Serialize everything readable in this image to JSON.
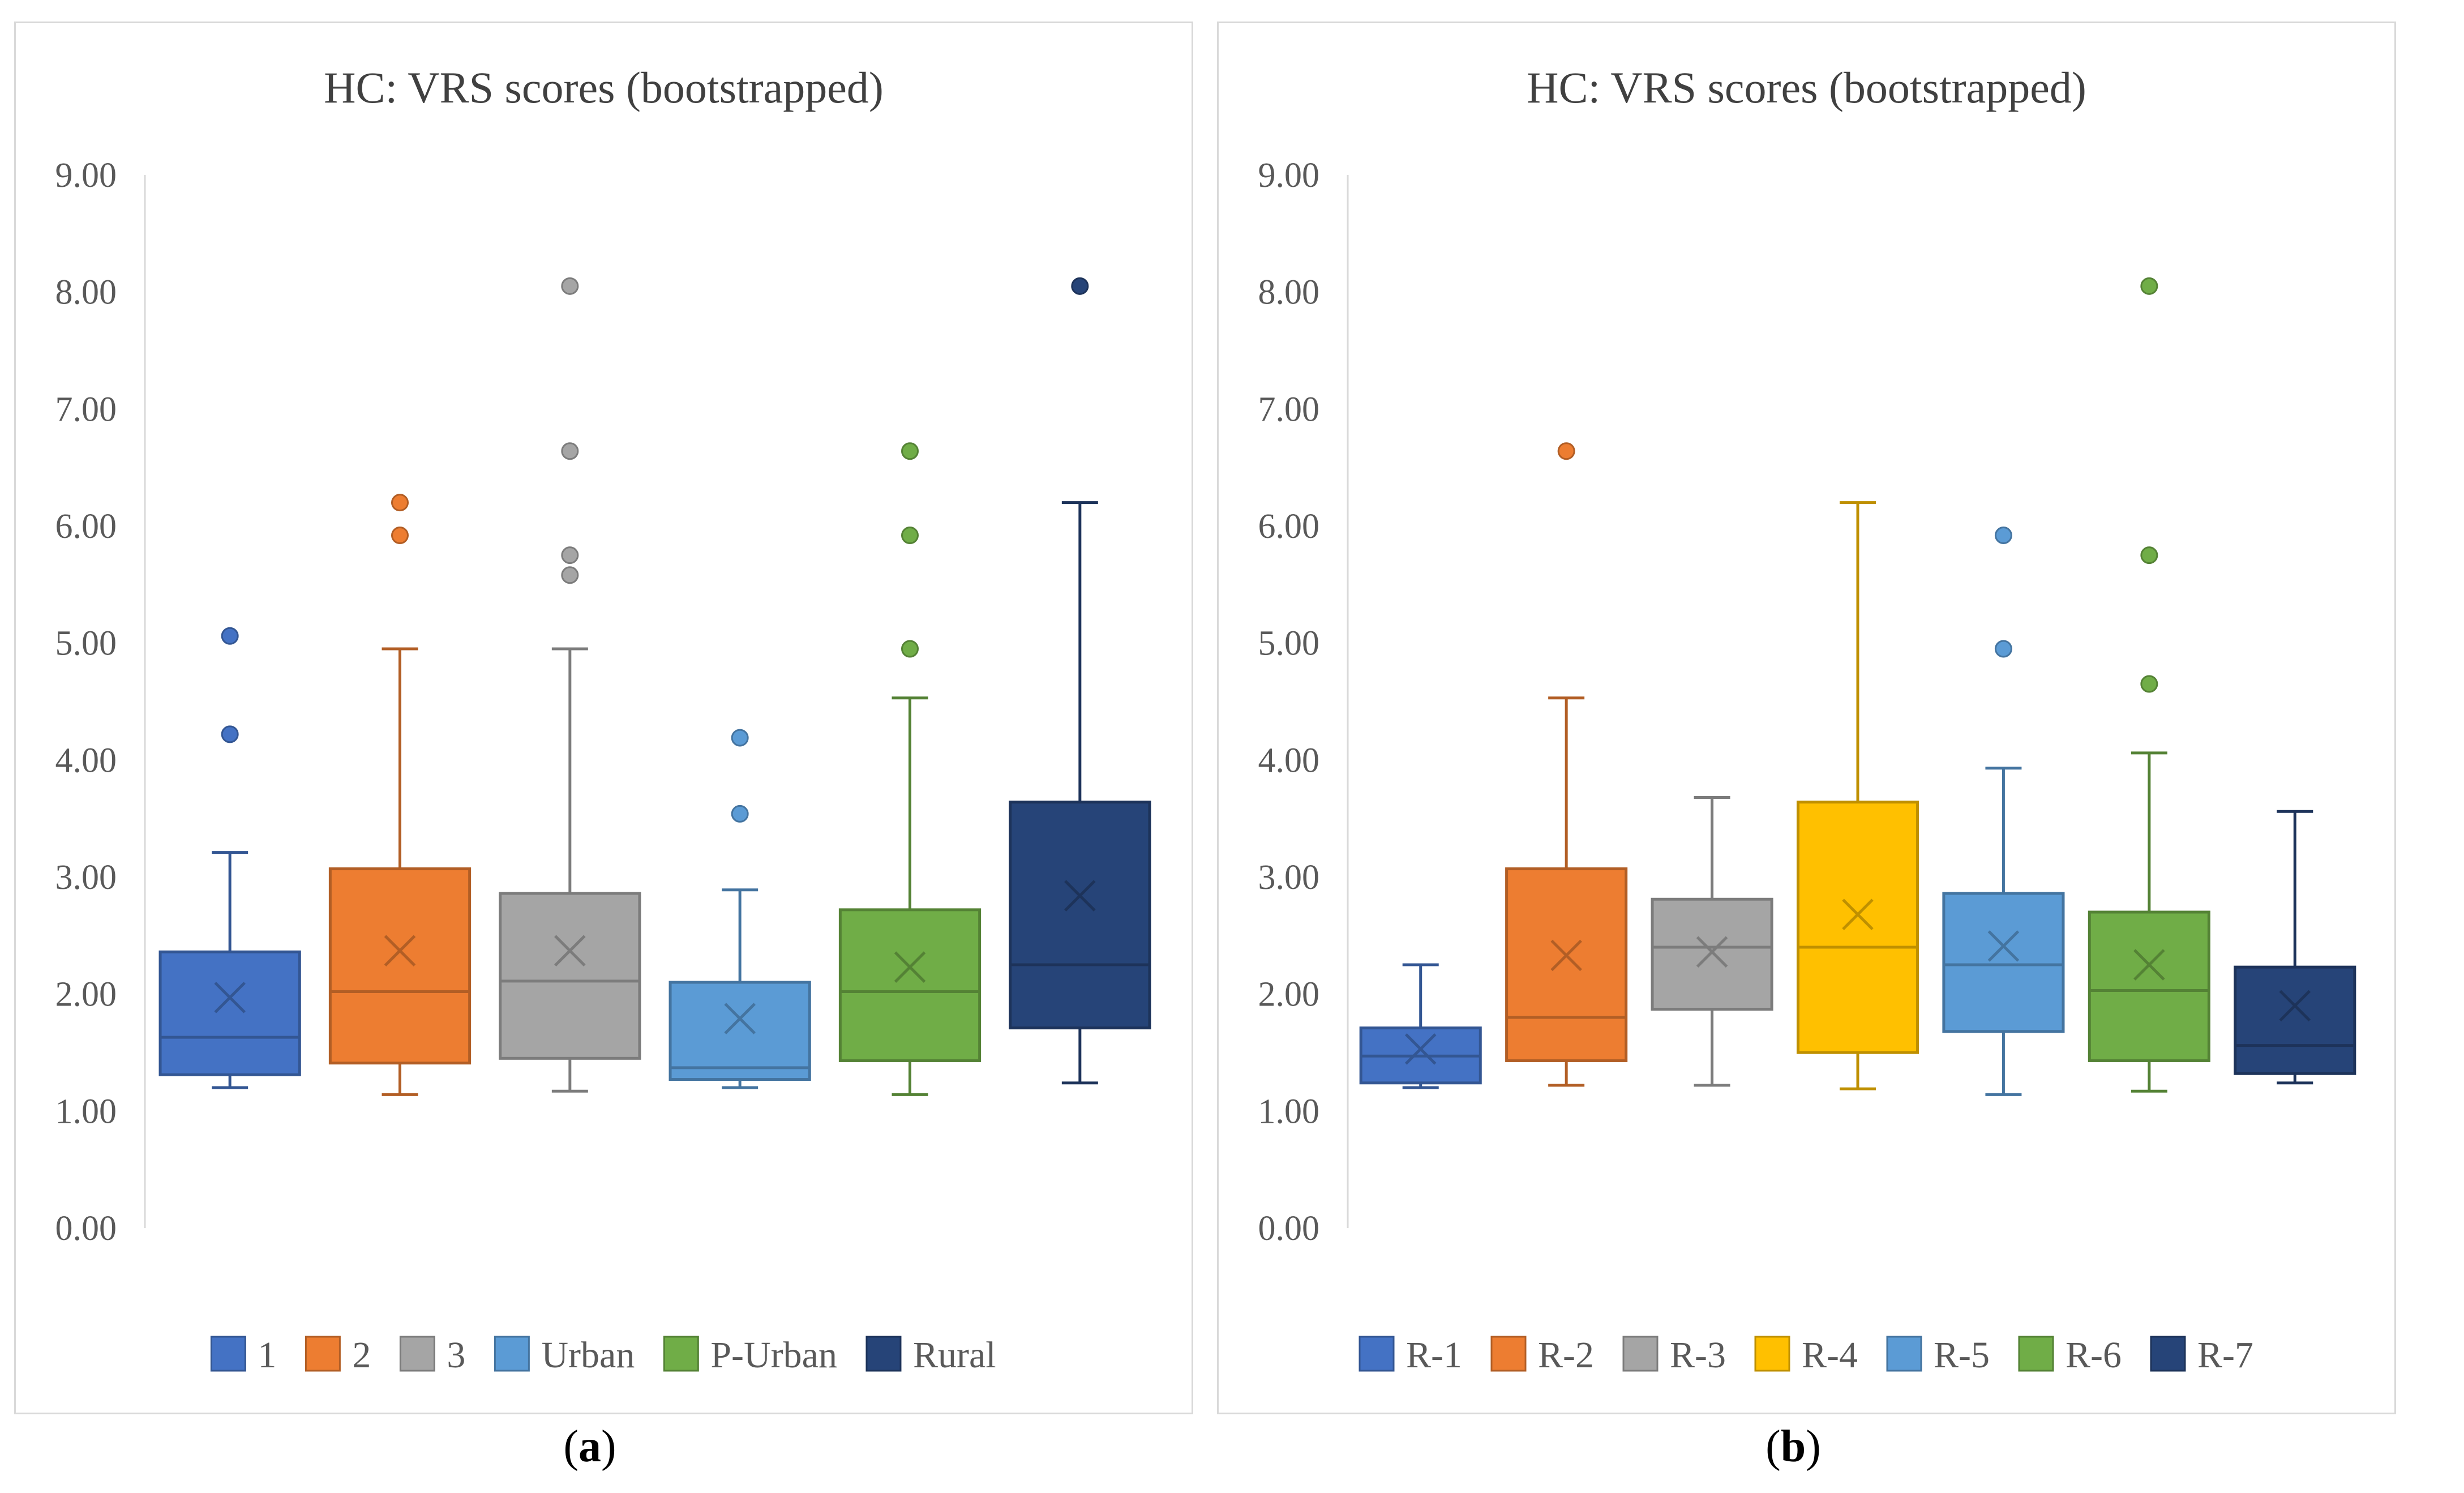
{
  "chart_data": [
    {
      "type": "box",
      "title": "HC: VRS scores (bootstrapped)",
      "yticks": [
        "0.00",
        "1.00",
        "2.00",
        "3.00",
        "4.00",
        "5.00",
        "6.00",
        "7.00",
        "8.00",
        "9.00"
      ],
      "ylim": [
        0,
        9
      ],
      "grid": false,
      "legend_position": "bottom",
      "caption": "a",
      "series": [
        {
          "name": "1",
          "color": "#4472C4",
          "min": 1.2,
          "q1": 1.31,
          "median": 1.63,
          "q3": 2.36,
          "max": 3.21,
          "mean": 1.97,
          "outliers": [
            4.22,
            5.06
          ]
        },
        {
          "name": "2",
          "color": "#ED7D31",
          "min": 1.14,
          "q1": 1.41,
          "median": 2.02,
          "q3": 3.07,
          "max": 4.95,
          "mean": 2.37,
          "outliers": [
            5.92,
            6.2
          ]
        },
        {
          "name": "3",
          "color": "#A5A5A5",
          "min": 1.17,
          "q1": 1.45,
          "median": 2.11,
          "q3": 2.86,
          "max": 4.95,
          "mean": 2.37,
          "outliers": [
            5.58,
            5.75,
            6.64,
            8.05
          ]
        },
        {
          "name": "Urban",
          "color": "#5B9BD5",
          "min": 1.2,
          "q1": 1.27,
          "median": 1.37,
          "q3": 2.1,
          "max": 2.89,
          "mean": 1.79,
          "outliers": [
            3.54,
            4.19
          ]
        },
        {
          "name": "P-Urban",
          "color": "#70AD47",
          "min": 1.14,
          "q1": 1.43,
          "median": 2.02,
          "q3": 2.72,
          "max": 4.53,
          "mean": 2.23,
          "outliers": [
            4.95,
            5.92,
            6.64
          ]
        },
        {
          "name": "Rural",
          "color": "#264478",
          "min": 1.24,
          "q1": 1.71,
          "median": 2.25,
          "q3": 3.64,
          "max": 6.2,
          "mean": 2.84,
          "outliers": [
            8.05
          ]
        }
      ]
    },
    {
      "type": "box",
      "title": "HC: VRS scores (bootstrapped)",
      "yticks": [
        "0.00",
        "1.00",
        "2.00",
        "3.00",
        "4.00",
        "5.00",
        "6.00",
        "7.00",
        "8.00",
        "9.00"
      ],
      "ylim": [
        0,
        9
      ],
      "grid": false,
      "legend_position": "bottom",
      "caption": "b",
      "series": [
        {
          "name": "R-1",
          "color": "#4472C4",
          "min": 1.2,
          "q1": 1.24,
          "median": 1.47,
          "q3": 1.71,
          "max": 2.25,
          "mean": 1.53,
          "outliers": []
        },
        {
          "name": "R-2",
          "color": "#ED7D31",
          "min": 1.22,
          "q1": 1.43,
          "median": 1.8,
          "q3": 3.07,
          "max": 4.53,
          "mean": 2.33,
          "outliers": [
            6.64
          ]
        },
        {
          "name": "R-3",
          "color": "#A5A5A5",
          "min": 1.22,
          "q1": 1.87,
          "median": 2.4,
          "q3": 2.81,
          "max": 3.68,
          "mean": 2.36,
          "outliers": []
        },
        {
          "name": "R-4",
          "color": "#FFC000",
          "min": 1.19,
          "q1": 1.5,
          "median": 2.4,
          "q3": 3.64,
          "max": 6.2,
          "mean": 2.68,
          "outliers": []
        },
        {
          "name": "R-5",
          "color": "#5B9BD5",
          "min": 1.14,
          "q1": 1.68,
          "median": 2.25,
          "q3": 2.86,
          "max": 3.93,
          "mean": 2.41,
          "outliers": [
            4.95,
            5.92
          ]
        },
        {
          "name": "R-6",
          "color": "#70AD47",
          "min": 1.17,
          "q1": 1.43,
          "median": 2.03,
          "q3": 2.7,
          "max": 4.06,
          "mean": 2.25,
          "outliers": [
            4.65,
            5.75,
            8.05
          ]
        },
        {
          "name": "R-7",
          "color": "#264478",
          "min": 1.24,
          "q1": 1.32,
          "median": 1.56,
          "q3": 2.23,
          "max": 3.56,
          "mean": 1.9,
          "outliers": []
        }
      ]
    }
  ]
}
